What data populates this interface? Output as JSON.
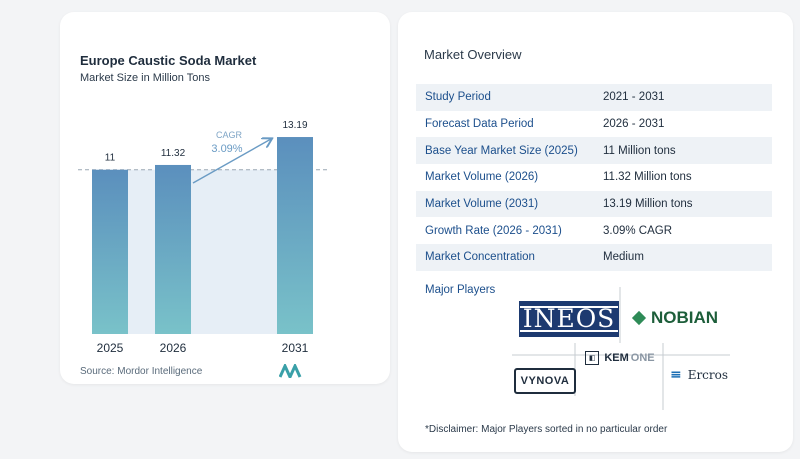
{
  "chart_data": {
    "type": "bar",
    "title": "Europe Caustic Soda Market",
    "subtitle": "Market Size in Million Tons",
    "categories": [
      "2025",
      "2026",
      "2031"
    ],
    "values": [
      11,
      11.32,
      13.19
    ],
    "value_labels": [
      "11",
      "11.32",
      "13.19"
    ],
    "cagr_label": "CAGR",
    "cagr_value": "3.09%",
    "ylim": [
      0,
      15
    ],
    "grid": false,
    "colors": {
      "bar_top": "#5b8fbd",
      "bar_bottom": "#79c2c9",
      "band": "#e6eef6",
      "text": "#1f2d3d",
      "cagr": "#6a9bc4"
    }
  },
  "source": {
    "label": "Source:",
    "name": "Mordor Intelligence"
  },
  "overview": {
    "title": "Market Overview",
    "rows": [
      {
        "label": "Study Period",
        "value": "2021 - 2031"
      },
      {
        "label": "Forecast Data Period",
        "value": "2026 - 2031"
      },
      {
        "label": "Base Year Market Size (2025)",
        "value": "11 Million tons"
      },
      {
        "label": "Market Volume (2026)",
        "value": "11.32 Million tons"
      },
      {
        "label": "Market Volume (2031)",
        "value": "13.19 Million tons"
      },
      {
        "label": "Growth Rate (2026 - 2031)",
        "value": "3.09% CAGR"
      },
      {
        "label": "Market Concentration",
        "value": "Medium"
      }
    ],
    "players_title": "Major Players",
    "players": [
      {
        "name": "INEOS",
        "icon": "ineos-logo"
      },
      {
        "name": "NOBIAN",
        "icon": "nobian-logo"
      },
      {
        "name": "VYNOVA",
        "icon": "vynova-logo"
      },
      {
        "name": "KEM",
        "suffix": "ONE",
        "icon": "kemone-logo"
      },
      {
        "name": "Ercros",
        "icon": "ercros-logo"
      }
    ],
    "disclaimer": "*Disclaimer: Major Players sorted in no particular order"
  }
}
